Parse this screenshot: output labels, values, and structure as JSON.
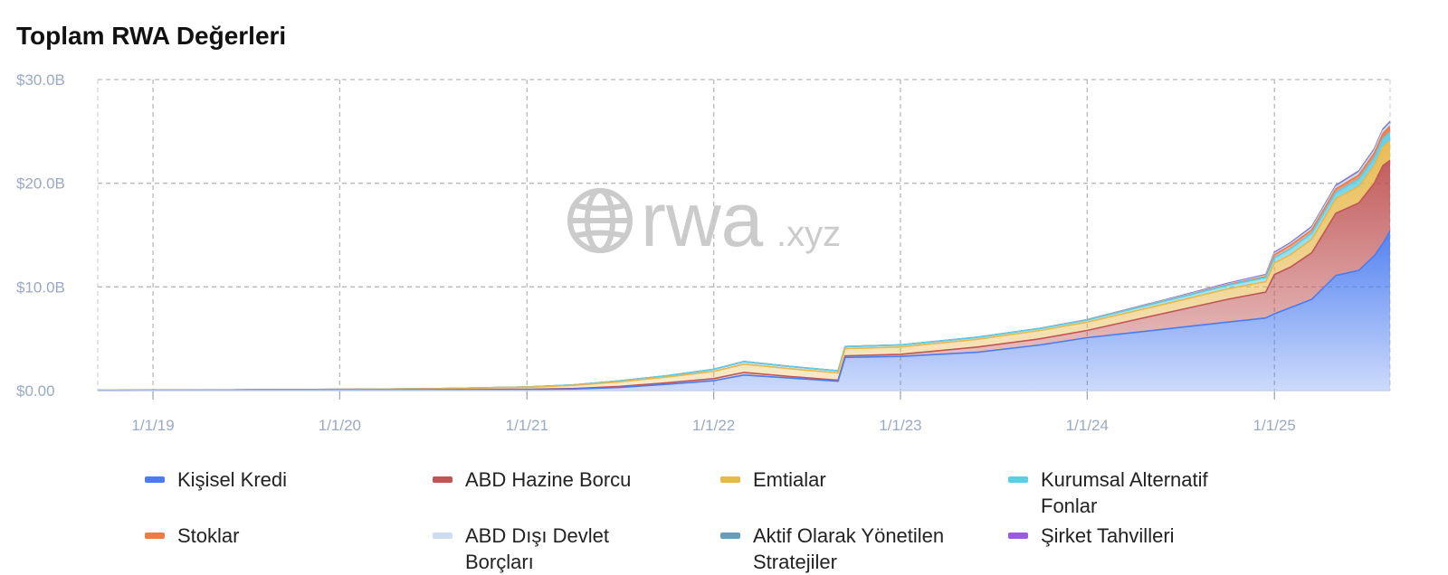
{
  "title": "Toplam RWA Değerleri",
  "watermark": {
    "brand": "rwa",
    "suffix": ".xyz",
    "icon": "globe-icon"
  },
  "chart_data": {
    "type": "area",
    "stacked": true,
    "title": "Toplam RWA Değerleri",
    "x_axis": {
      "type": "date",
      "range": [
        "2018-09-15",
        "2025-08-15"
      ],
      "ticks": [
        "2019-01-01",
        "2020-01-01",
        "2021-01-01",
        "2022-01-01",
        "2023-01-01",
        "2024-01-01",
        "2025-01-01"
      ],
      "tick_labels": [
        "1/1/19",
        "1/1/20",
        "1/1/21",
        "1/1/22",
        "1/1/23",
        "1/1/24",
        "1/1/25"
      ]
    },
    "y_axis": {
      "unit": "USD billions",
      "ylim": [
        0,
        30
      ],
      "ticks": [
        0,
        10,
        20,
        30
      ],
      "tick_labels": [
        "$0.00",
        "$10.0B",
        "$20.0B",
        "$30.0B"
      ]
    },
    "grid": true,
    "grid_style": "dashed",
    "legend_position": "bottom",
    "x": [
      "2018-09-15",
      "2019-01-01",
      "2019-07-01",
      "2020-01-01",
      "2020-07-01",
      "2021-01-01",
      "2021-04-01",
      "2021-07-01",
      "2021-10-01",
      "2022-01-01",
      "2022-03-01",
      "2022-06-01",
      "2022-09-01",
      "2022-09-15",
      "2023-01-01",
      "2023-06-01",
      "2023-10-01",
      "2024-01-01",
      "2024-04-01",
      "2024-07-01",
      "2024-10-01",
      "2024-12-15",
      "2025-01-01",
      "2025-02-01",
      "2025-03-15",
      "2025-05-01",
      "2025-06-15",
      "2025-07-15",
      "2025-08-01",
      "2025-08-15"
    ],
    "series": [
      {
        "name": "Kişisel Kredi",
        "color": "#4a7cf0",
        "values": [
          0.02,
          0.03,
          0.04,
          0.05,
          0.07,
          0.1,
          0.15,
          0.3,
          0.6,
          0.95,
          1.5,
          1.2,
          0.9,
          3.2,
          3.3,
          3.7,
          4.4,
          5.1,
          5.6,
          6.1,
          6.6,
          7.0,
          7.4,
          8.0,
          8.8,
          11.1,
          11.6,
          13.0,
          14.2,
          15.4
        ]
      },
      {
        "name": "ABD Hazine Borcu",
        "color": "#c05555",
        "values": [
          0.0,
          0.0,
          0.0,
          0.0,
          0.0,
          0.02,
          0.05,
          0.1,
          0.15,
          0.2,
          0.25,
          0.15,
          0.1,
          0.15,
          0.2,
          0.5,
          0.6,
          0.7,
          1.2,
          1.7,
          2.2,
          2.5,
          3.8,
          3.9,
          4.5,
          6.0,
          6.5,
          7.0,
          7.5,
          6.8
        ]
      },
      {
        "name": "Emtialar",
        "color": "#e8b84a",
        "values": [
          0.0,
          0.0,
          0.02,
          0.05,
          0.1,
          0.2,
          0.3,
          0.45,
          0.55,
          0.7,
          0.8,
          0.75,
          0.7,
          0.7,
          0.7,
          0.75,
          0.8,
          0.8,
          0.85,
          0.9,
          1.0,
          1.0,
          1.1,
          1.2,
          1.3,
          1.4,
          1.6,
          1.7,
          1.8,
          1.9
        ]
      },
      {
        "name": "Kurumsal Alternatif Fonlar",
        "color": "#5ccde6",
        "values": [
          0.01,
          0.01,
          0.01,
          0.01,
          0.01,
          0.02,
          0.04,
          0.08,
          0.12,
          0.2,
          0.25,
          0.22,
          0.2,
          0.2,
          0.2,
          0.2,
          0.2,
          0.2,
          0.25,
          0.3,
          0.35,
          0.4,
          0.5,
          0.55,
          0.6,
          0.6,
          0.7,
          0.75,
          0.8,
          0.85
        ]
      },
      {
        "name": "Stoklar",
        "color": "#ef7a45",
        "values": [
          0,
          0,
          0,
          0,
          0,
          0,
          0,
          0,
          0,
          0,
          0,
          0,
          0,
          0,
          0,
          0,
          0,
          0.01,
          0.02,
          0.03,
          0.05,
          0.1,
          0.3,
          0.35,
          0.3,
          0.35,
          0.4,
          0.45,
          0.5,
          0.55
        ]
      },
      {
        "name": "ABD Dışı Devlet Borçları",
        "color": "#cfdcf0",
        "values": [
          0,
          0,
          0,
          0,
          0,
          0,
          0,
          0,
          0,
          0,
          0,
          0,
          0,
          0,
          0,
          0,
          0,
          0.01,
          0.02,
          0.03,
          0.05,
          0.08,
          0.1,
          0.12,
          0.15,
          0.18,
          0.2,
          0.22,
          0.24,
          0.25
        ]
      },
      {
        "name": "Aktif Olarak Yönetilen Stratejiler",
        "color": "#6a9cc0",
        "values": [
          0,
          0,
          0,
          0,
          0,
          0,
          0,
          0,
          0,
          0,
          0,
          0,
          0,
          0,
          0,
          0,
          0,
          0.01,
          0.02,
          0.03,
          0.04,
          0.05,
          0.06,
          0.07,
          0.08,
          0.09,
          0.1,
          0.1,
          0.1,
          0.1
        ]
      },
      {
        "name": "Şirket Tahvilleri",
        "color": "#9b5be0",
        "values": [
          0,
          0,
          0,
          0,
          0,
          0,
          0,
          0,
          0,
          0,
          0,
          0,
          0,
          0,
          0,
          0,
          0,
          0.02,
          0.03,
          0.04,
          0.05,
          0.06,
          0.07,
          0.07,
          0.08,
          0.08,
          0.08,
          0.09,
          0.09,
          0.1
        ]
      }
    ]
  }
}
